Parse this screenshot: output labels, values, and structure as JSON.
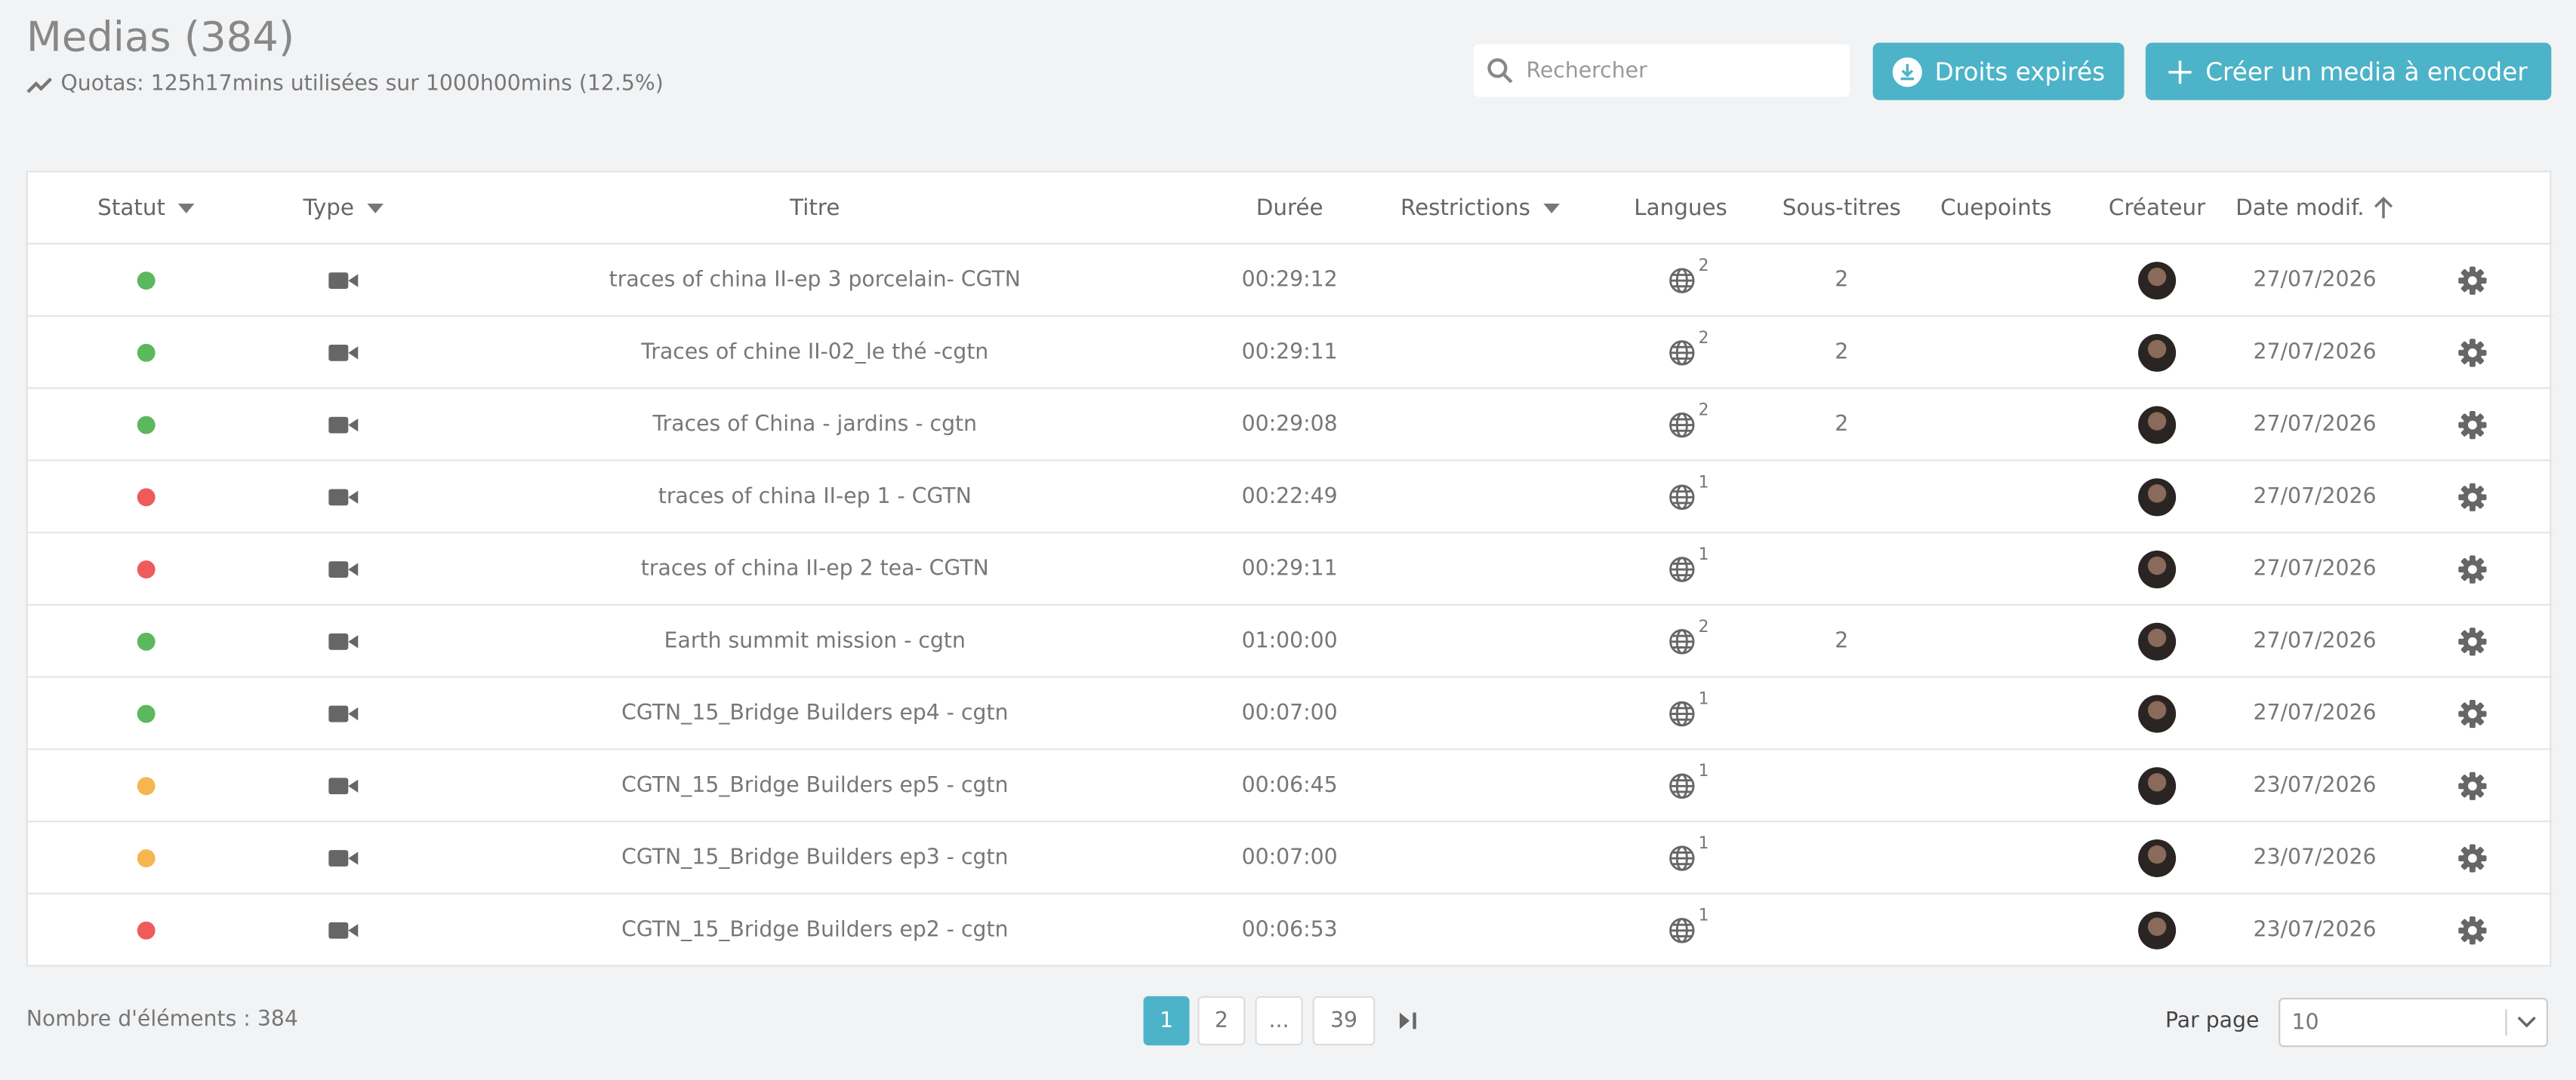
{
  "header": {
    "title": "Medias (384)",
    "quotas": "Quotas: 125h17mins utilisées sur 1000h00mins (12.5%)",
    "search_placeholder": "Rechercher",
    "button_expired": "Droits expirés",
    "button_create": "Créer un media à encoder"
  },
  "table": {
    "columns": [
      "Statut",
      "Type",
      "Titre",
      "Durée",
      "Restrictions",
      "Langues",
      "Sous-titres",
      "Cuepoints",
      "Créateur",
      "Date modif."
    ],
    "rows": [
      {
        "status_color": "#5cb85c",
        "title": "traces of china II-ep 3 porcelain- CGTN",
        "duration": "00:29:12",
        "languages": 2,
        "subtitles": 2,
        "date": "27/07/2026"
      },
      {
        "status_color": "#5cb85c",
        "title": "Traces of chine II-02_le thé -cgtn",
        "duration": "00:29:11",
        "languages": 2,
        "subtitles": 2,
        "date": "27/07/2026"
      },
      {
        "status_color": "#5cb85c",
        "title": "Traces of China - jardins - cgtn",
        "duration": "00:29:08",
        "languages": 2,
        "subtitles": 2,
        "date": "27/07/2026"
      },
      {
        "status_color": "#ef5b5b",
        "title": "traces of china II-ep 1 - CGTN",
        "duration": "00:22:49",
        "languages": 1,
        "subtitles": null,
        "date": "27/07/2026"
      },
      {
        "status_color": "#ef5b5b",
        "title": "traces of china II-ep 2 tea- CGTN",
        "duration": "00:29:11",
        "languages": 1,
        "subtitles": null,
        "date": "27/07/2026"
      },
      {
        "status_color": "#5cb85c",
        "title": "Earth summit mission - cgtn",
        "duration": "01:00:00",
        "languages": 2,
        "subtitles": 2,
        "date": "27/07/2026"
      },
      {
        "status_color": "#5cb85c",
        "title": "CGTN_15_Bridge Builders ep4 - cgtn",
        "duration": "00:07:00",
        "languages": 1,
        "subtitles": null,
        "date": "27/07/2026"
      },
      {
        "status_color": "#f5b651",
        "title": "CGTN_15_Bridge Builders ep5 - cgtn",
        "duration": "00:06:45",
        "languages": 1,
        "subtitles": null,
        "date": "23/07/2026"
      },
      {
        "status_color": "#f5b651",
        "title": "CGTN_15_Bridge Builders ep3 - cgtn",
        "duration": "00:07:00",
        "languages": 1,
        "subtitles": null,
        "date": "23/07/2026"
      },
      {
        "status_color": "#ef5b5b",
        "title": "CGTN_15_Bridge Builders ep2 - cgtn",
        "duration": "00:06:53",
        "languages": 1,
        "subtitles": null,
        "date": "23/07/2026"
      }
    ]
  },
  "footer": {
    "count": "Nombre d'éléments : 384",
    "pages": [
      "1",
      "2",
      "...",
      "39"
    ],
    "per_page_label": "Par page",
    "per_page": "10"
  }
}
